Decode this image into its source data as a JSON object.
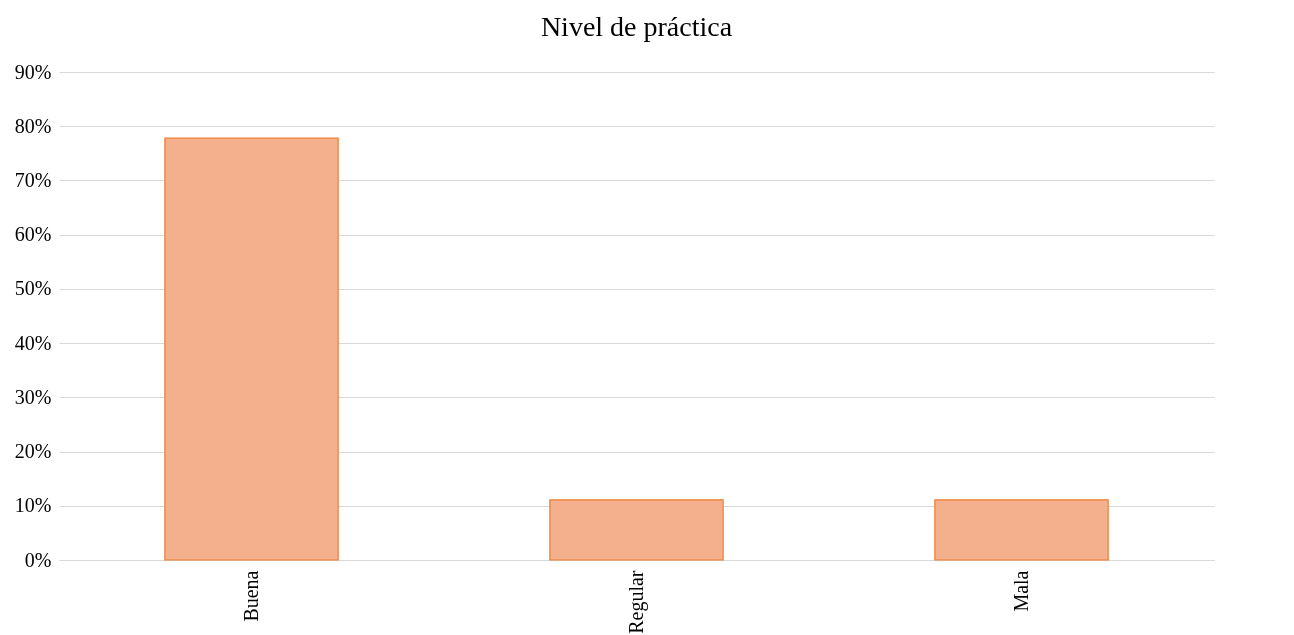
{
  "chart_data": {
    "type": "bar",
    "title": "Nivel de práctica",
    "categories": [
      "Buena",
      "Regular",
      "Mala"
    ],
    "values": [
      77.8,
      11.1,
      11.1
    ],
    "color": "#f4b08c",
    "ylim": [
      0,
      90
    ],
    "yticks": [
      {
        "value": 0,
        "label": "0%"
      },
      {
        "value": 10,
        "label": "10%"
      },
      {
        "value": 20,
        "label": "20%"
      },
      {
        "value": 30,
        "label": "30%"
      },
      {
        "value": 40,
        "label": "40%"
      },
      {
        "value": 50,
        "label": "50%"
      },
      {
        "value": 60,
        "label": "60%"
      },
      {
        "value": 70,
        "label": "70%"
      },
      {
        "value": 80,
        "label": "80%"
      },
      {
        "value": 90,
        "label": "90%"
      }
    ],
    "grid": "y"
  }
}
